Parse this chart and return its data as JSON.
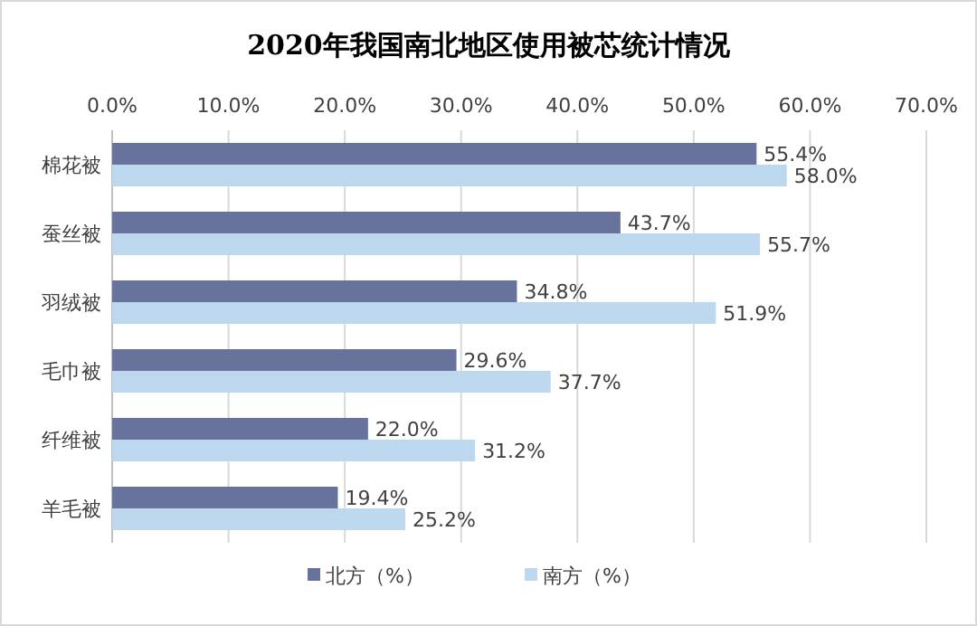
{
  "chart_data": {
    "type": "bar",
    "orientation": "horizontal",
    "title": "2020年我国南北地区使用被芯统计情况",
    "categories": [
      "棉花被",
      "蚕丝被",
      "羽绒被",
      "毛巾被",
      "纤维被",
      "羊毛被"
    ],
    "series": [
      {
        "name": "北方（%）",
        "color": "#67739a",
        "values": [
          55.4,
          43.7,
          34.8,
          29.6,
          22.0,
          19.4
        ],
        "value_labels": [
          "55.4%",
          "43.7%",
          "34.8%",
          "29.6%",
          "22.0%",
          "19.4%"
        ]
      },
      {
        "name": "南方（%）",
        "color": "#bdd7ee",
        "values": [
          58.0,
          55.7,
          51.9,
          37.7,
          31.2,
          25.2
        ],
        "value_labels": [
          "58.0%",
          "55.7%",
          "51.9%",
          "37.7%",
          "31.2%",
          "25.2%"
        ]
      }
    ],
    "xlim": [
      0,
      70
    ],
    "xticks": [
      {
        "value": 0,
        "label": "0.0%"
      },
      {
        "value": 10,
        "label": "10.0%"
      },
      {
        "value": 20,
        "label": "20.0%"
      },
      {
        "value": 30,
        "label": "30.0%"
      },
      {
        "value": 40,
        "label": "40.0%"
      },
      {
        "value": 50,
        "label": "50.0%"
      },
      {
        "value": 60,
        "label": "60.0%"
      },
      {
        "value": 70,
        "label": "70.0%"
      }
    ],
    "grid": "x",
    "legend": "bottom"
  }
}
